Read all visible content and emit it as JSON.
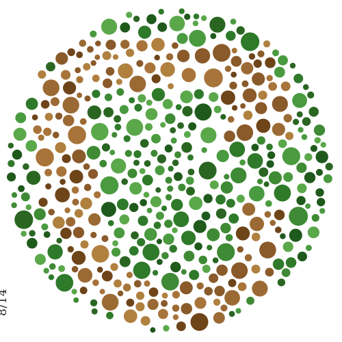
{
  "plate": {
    "label": "8/14",
    "description_colors": {
      "background": "#ffffff",
      "figure_palette": [
        "#8a5a2a",
        "#9b6a34",
        "#a8743a",
        "#6e4419",
        "#b0803f"
      ],
      "field_palette": [
        "#2f7a2a",
        "#3f8a35",
        "#2a6622",
        "#4a9a40",
        "#1f5a1c",
        "#5aa84a"
      ]
    }
  }
}
